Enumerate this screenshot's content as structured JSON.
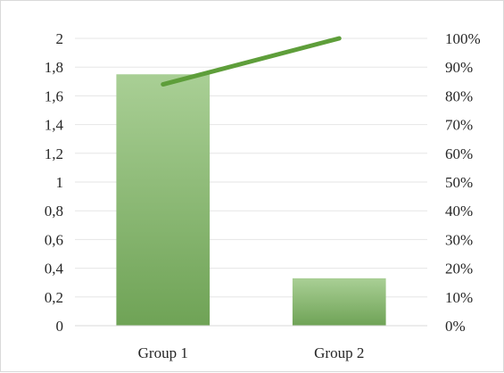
{
  "chart_data": {
    "type": "bar",
    "categories": [
      "Group 1",
      "Group 2"
    ],
    "series": [
      {
        "type": "bar",
        "axis": "left",
        "values": [
          1.75,
          0.33
        ],
        "color": "#86b56e"
      },
      {
        "type": "line",
        "axis": "right",
        "values": [
          0.84,
          1.0
        ],
        "color": "#5e9e3a"
      }
    ],
    "ylim": [
      0,
      2
    ],
    "y_ticks": [
      "0",
      "0,2",
      "0,4",
      "0,6",
      "0,8",
      "1",
      "1,2",
      "1,4",
      "1,6",
      "1,8",
      "2"
    ],
    "y2lim": [
      0,
      1
    ],
    "y2_ticks": [
      "0%",
      "10%",
      "20%",
      "30%",
      "40%",
      "50%",
      "60%",
      "70%",
      "80%",
      "90%",
      "100%"
    ],
    "grid": true,
    "legend": "none",
    "gridline_color": "#e6e6e6",
    "bar_gradient_top": "#a9cf95",
    "bar_gradient_bottom": "#6fa356"
  }
}
